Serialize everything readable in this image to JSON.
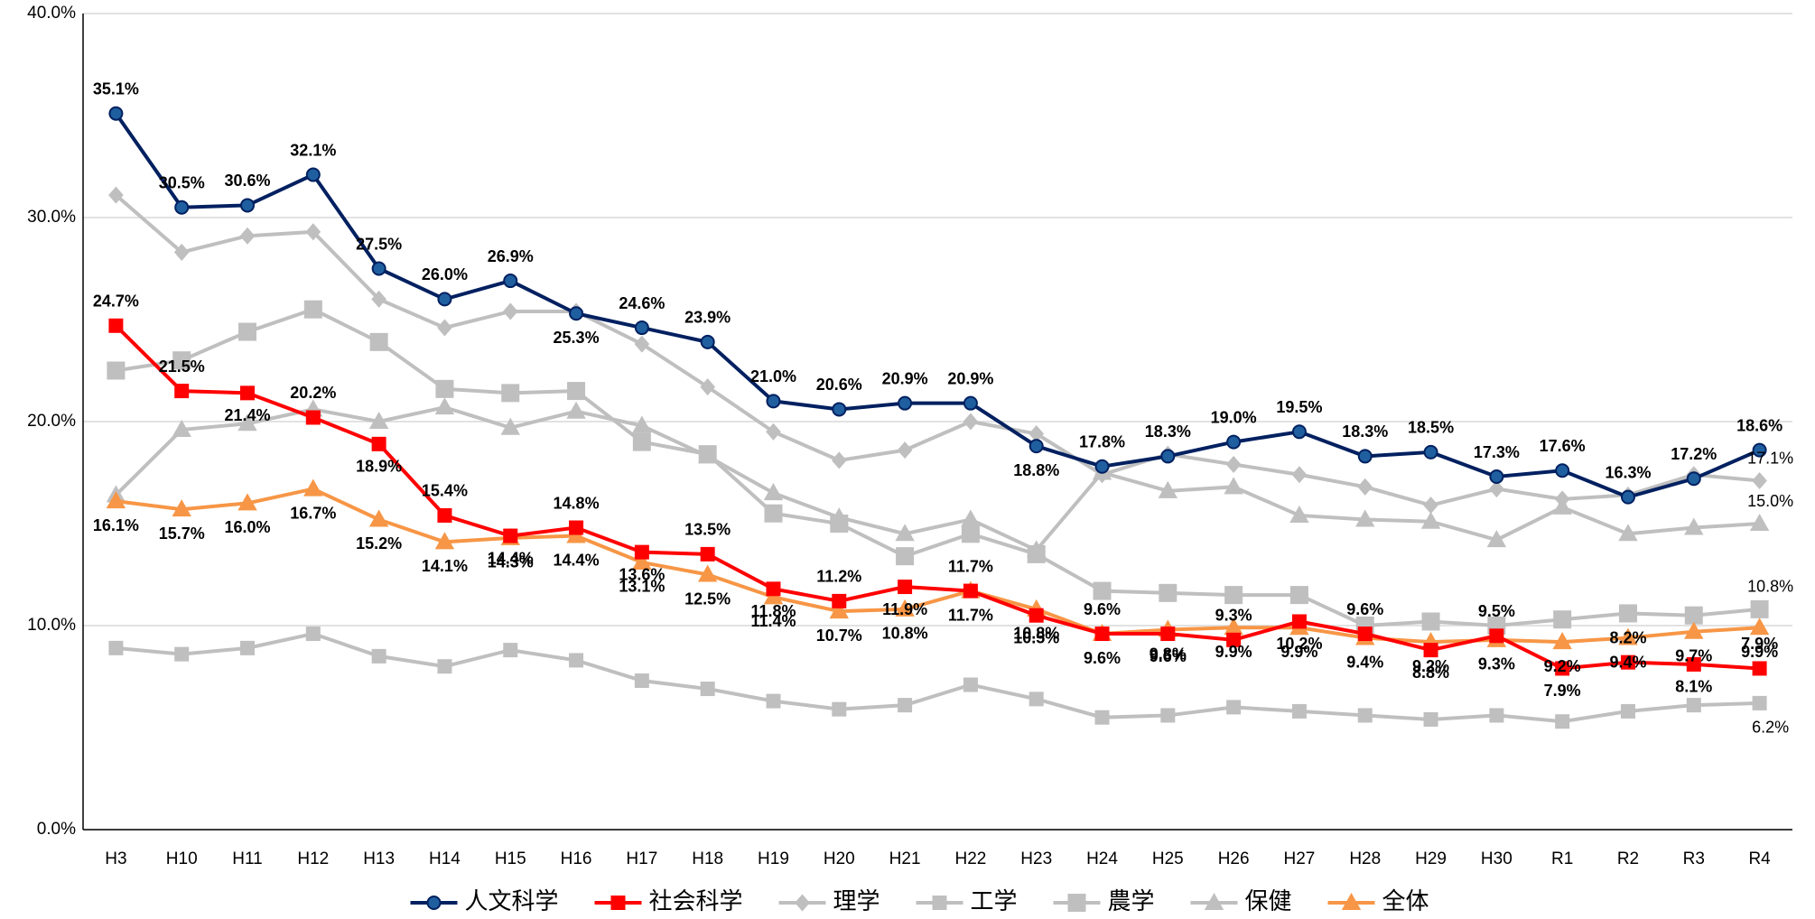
{
  "chart_data": {
    "type": "line",
    "categories": [
      "H3",
      "H10",
      "H11",
      "H12",
      "H13",
      "H14",
      "H15",
      "H16",
      "H17",
      "H18",
      "H19",
      "H20",
      "H21",
      "H22",
      "H23",
      "H24",
      "H25",
      "H26",
      "H27",
      "H28",
      "H29",
      "H30",
      "R1",
      "R2",
      "R3",
      "R4"
    ],
    "ylim": [
      0,
      40
    ],
    "yticks": [
      {
        "value": 0,
        "label": "0.0%"
      },
      {
        "value": 10,
        "label": "10.0%"
      },
      {
        "value": 20,
        "label": "20.0%"
      },
      {
        "value": 30,
        "label": "30.0%"
      },
      {
        "value": 40,
        "label": "40.0%"
      }
    ],
    "grid": true,
    "legend": "bottom",
    "series": [
      {
        "name": "人文科学",
        "color": "#002060",
        "marker": "circle",
        "marker_fill": "#1f5f9f",
        "label_color": "#002060",
        "values": [
          35.1,
          30.5,
          30.6,
          32.1,
          27.5,
          26.0,
          26.9,
          25.3,
          24.6,
          23.9,
          21.0,
          20.6,
          20.9,
          20.9,
          18.8,
          17.8,
          18.3,
          19.0,
          19.5,
          18.3,
          18.5,
          17.3,
          17.6,
          16.3,
          17.2,
          18.6
        ],
        "value_labels": [
          "35.1%",
          "30.5%",
          "30.6%",
          "32.1%",
          "27.5%",
          "26.0%",
          "26.9%",
          "25.3%",
          "24.6%",
          "23.9%",
          "21.0%",
          "20.6%",
          "20.9%",
          "20.9%",
          "18.8%",
          "17.8%",
          "18.3%",
          "19.0%",
          "19.5%",
          "18.3%",
          "18.5%",
          "17.3%",
          "17.6%",
          "16.3%",
          "17.2%",
          "18.6%"
        ]
      },
      {
        "name": "社会科学",
        "color": "#ff0000",
        "marker": "square",
        "marker_fill": "#ff0000",
        "label_color": "#ff0000",
        "values": [
          24.7,
          21.5,
          21.4,
          20.2,
          18.9,
          15.4,
          14.4,
          14.8,
          13.6,
          13.5,
          11.8,
          11.2,
          11.9,
          11.7,
          10.5,
          9.6,
          9.6,
          9.3,
          10.2,
          9.6,
          8.8,
          9.5,
          7.9,
          8.2,
          8.1,
          7.9
        ],
        "value_labels": [
          "24.7%",
          "21.5%",
          "21.4%",
          "20.2%",
          "18.9%",
          "15.4%",
          "14.4%",
          "14.8%",
          "13.6%",
          "13.5%",
          "11.8%",
          "11.2%",
          "11.9%",
          "11.7%",
          "10.5%",
          "9.6%",
          "9.6%",
          "9.3%",
          "10.2%",
          "9.6%",
          "8.8%",
          "9.5%",
          "7.9%",
          "8.2%",
          "8.1%",
          "7.9%"
        ]
      },
      {
        "name": "理学",
        "color": "#bfbfbf",
        "marker": "diamond",
        "marker_fill": "#bfbfbf",
        "label_color": "#595959",
        "values": [
          31.1,
          28.3,
          29.1,
          29.3,
          26.0,
          24.6,
          25.4,
          25.4,
          23.8,
          21.7,
          19.5,
          18.1,
          18.6,
          20.0,
          19.4,
          17.4,
          18.4,
          17.9,
          17.4,
          16.8,
          15.9,
          16.7,
          16.2,
          16.4,
          17.4,
          17.1
        ],
        "value_labels": [
          null,
          null,
          null,
          null,
          null,
          null,
          null,
          null,
          null,
          null,
          null,
          null,
          null,
          null,
          null,
          null,
          null,
          null,
          null,
          null,
          null,
          null,
          null,
          null,
          null,
          "17.1%"
        ]
      },
      {
        "name": "工学",
        "color": "#bfbfbf",
        "marker": "square",
        "marker_fill": "#bfbfbf",
        "label_color": "#595959",
        "values": [
          8.9,
          8.6,
          8.9,
          9.6,
          8.5,
          8.0,
          8.8,
          8.3,
          7.3,
          6.9,
          6.3,
          5.9,
          6.1,
          7.1,
          6.4,
          5.5,
          5.6,
          6.0,
          5.8,
          5.6,
          5.4,
          5.6,
          5.3,
          5.8,
          6.1,
          6.2
        ],
        "value_labels": [
          null,
          null,
          null,
          null,
          null,
          null,
          null,
          null,
          null,
          null,
          null,
          null,
          null,
          null,
          null,
          null,
          null,
          null,
          null,
          null,
          null,
          null,
          null,
          null,
          null,
          "6.2%"
        ]
      },
      {
        "name": "農学",
        "color": "#bfbfbf",
        "marker": "bigsquare",
        "marker_fill": "#bfbfbf",
        "label_color": "#595959",
        "values": [
          22.5,
          23.0,
          24.4,
          25.5,
          23.9,
          21.6,
          21.4,
          21.5,
          19.0,
          18.4,
          15.5,
          15.0,
          13.4,
          14.5,
          13.5,
          11.7,
          11.6,
          11.5,
          11.5,
          10.0,
          10.2,
          10.0,
          10.3,
          10.6,
          10.5,
          10.8
        ],
        "value_labels": [
          null,
          null,
          null,
          null,
          null,
          null,
          null,
          null,
          null,
          null,
          null,
          null,
          null,
          null,
          null,
          null,
          null,
          null,
          null,
          null,
          null,
          null,
          null,
          null,
          null,
          "10.8%"
        ]
      },
      {
        "name": "保健",
        "color": "#bfbfbf",
        "marker": "triangle",
        "marker_fill": "#bfbfbf",
        "label_color": "#595959",
        "values": [
          16.4,
          19.6,
          19.9,
          20.6,
          20.0,
          20.7,
          19.7,
          20.5,
          19.8,
          18.3,
          16.5,
          15.3,
          14.5,
          15.2,
          13.7,
          17.5,
          16.6,
          16.8,
          15.4,
          15.2,
          15.1,
          14.2,
          15.8,
          14.5,
          14.8,
          15.0
        ],
        "value_labels": [
          null,
          null,
          null,
          null,
          null,
          null,
          null,
          null,
          null,
          null,
          null,
          null,
          null,
          null,
          null,
          null,
          null,
          null,
          null,
          null,
          null,
          null,
          null,
          null,
          null,
          "15.0%"
        ]
      },
      {
        "name": "全体",
        "color": "#f79646",
        "marker": "triangle",
        "marker_fill": "#f79646",
        "label_color": "#ffc000",
        "values": [
          16.1,
          15.7,
          16.0,
          16.7,
          15.2,
          14.1,
          14.3,
          14.4,
          13.1,
          12.5,
          11.4,
          10.7,
          10.8,
          11.7,
          10.8,
          9.6,
          9.8,
          9.9,
          9.9,
          9.4,
          9.2,
          9.3,
          9.2,
          9.4,
          9.7,
          9.9
        ],
        "value_labels": [
          "16.1%",
          "15.7%",
          "16.0%",
          "16.7%",
          "15.2%",
          "14.1%",
          "14.3%",
          "14.4%",
          "13.1%",
          "12.5%",
          "11.4%",
          "10.7%",
          "10.8%",
          "11.7%",
          "10.8%",
          "9.6%",
          "9.8%",
          "9.9%",
          "9.9%",
          "9.4%",
          "9.2%",
          "9.3%",
          "9.2%",
          "9.4%",
          "9.7%",
          "9.9%"
        ]
      }
    ]
  }
}
